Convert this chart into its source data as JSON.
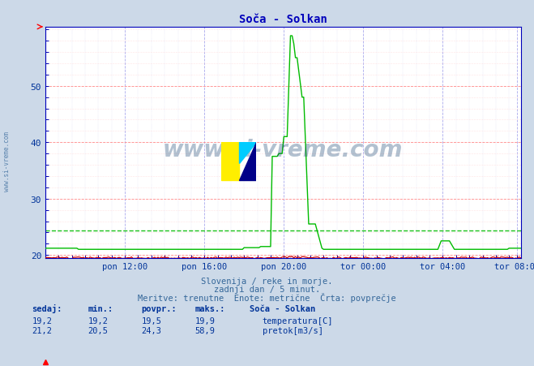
{
  "title": "Soča - Solkan",
  "bg_color": "#ccd9e8",
  "plot_bg_color": "#ffffff",
  "grid_color_major_h": "#ff9999",
  "grid_color_major_v": "#9999ff",
  "grid_color_minor": "#ddddee",
  "ylim": [
    19.5,
    60.5
  ],
  "yticks": [
    20,
    30,
    40,
    50
  ],
  "xlabel_ticks": [
    "pon 12:00",
    "pon 16:00",
    "pon 20:00",
    "tor 00:00",
    "tor 04:00",
    "tor 08:00"
  ],
  "temp_color": "#cc0000",
  "flow_color": "#00bb00",
  "avg_flow_color": "#00bb00",
  "avg_flow_value": 24.3,
  "subtitle1": "Slovenija / reke in morje.",
  "subtitle2": "zadnji dan / 5 minut.",
  "subtitle3": "Meritve: trenutne  Enote: metrične  Črta: povprečje",
  "watermark": "www.si-vreme.com",
  "left_watermark": "www.si-vreme.com",
  "stats_headers": [
    "sedaj:",
    "min.:",
    "povpr.:",
    "maks.:",
    "Soča - Solkan"
  ],
  "temp_stats": [
    "19,2",
    "19,2",
    "19,5",
    "19,9"
  ],
  "flow_stats": [
    "21,2",
    "20,5",
    "24,3",
    "58,9"
  ],
  "temp_label": "temperatura[C]",
  "flow_label": "pretok[m3/s]"
}
